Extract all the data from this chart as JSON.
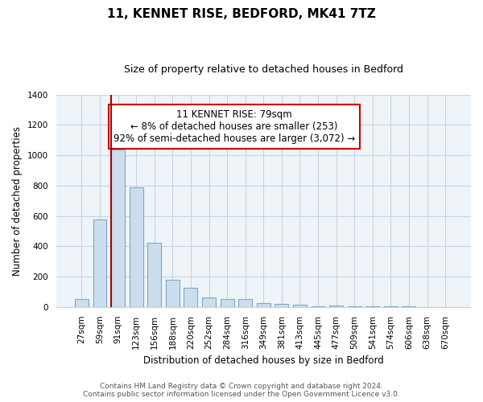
{
  "title": "11, KENNET RISE, BEDFORD, MK41 7TZ",
  "subtitle": "Size of property relative to detached houses in Bedford",
  "xlabel": "Distribution of detached houses by size in Bedford",
  "ylabel": "Number of detached properties",
  "bar_labels": [
    "27sqm",
    "59sqm",
    "91sqm",
    "123sqm",
    "156sqm",
    "188sqm",
    "220sqm",
    "252sqm",
    "284sqm",
    "316sqm",
    "349sqm",
    "381sqm",
    "413sqm",
    "445sqm",
    "477sqm",
    "509sqm",
    "541sqm",
    "574sqm",
    "606sqm",
    "638sqm",
    "670sqm"
  ],
  "bar_values": [
    50,
    575,
    1040,
    790,
    425,
    180,
    125,
    65,
    50,
    50,
    25,
    20,
    15,
    5,
    10,
    5,
    5,
    5,
    5,
    0,
    0
  ],
  "bar_color": "#ccdded",
  "bar_edge_color": "#7aaabf",
  "vline_x_index": 2,
  "vline_color": "#aa0000",
  "annotation_text": "11 KENNET RISE: 79sqm\n← 8% of detached houses are smaller (253)\n92% of semi-detached houses are larger (3,072) →",
  "annotation_box_color": "white",
  "annotation_box_edge": "#cc0000",
  "ylim": [
    0,
    1400
  ],
  "yticks": [
    0,
    200,
    400,
    600,
    800,
    1000,
    1200,
    1400
  ],
  "footer_line1": "Contains HM Land Registry data © Crown copyright and database right 2024.",
  "footer_line2": "Contains public sector information licensed under the Open Government Licence v3.0.",
  "title_fontsize": 11,
  "subtitle_fontsize": 9,
  "axis_label_fontsize": 8.5,
  "tick_fontsize": 7.5,
  "annotation_fontsize": 8.5,
  "footer_fontsize": 6.5,
  "grid_color": "#c8d4e0",
  "bg_color": "#eef4f8"
}
